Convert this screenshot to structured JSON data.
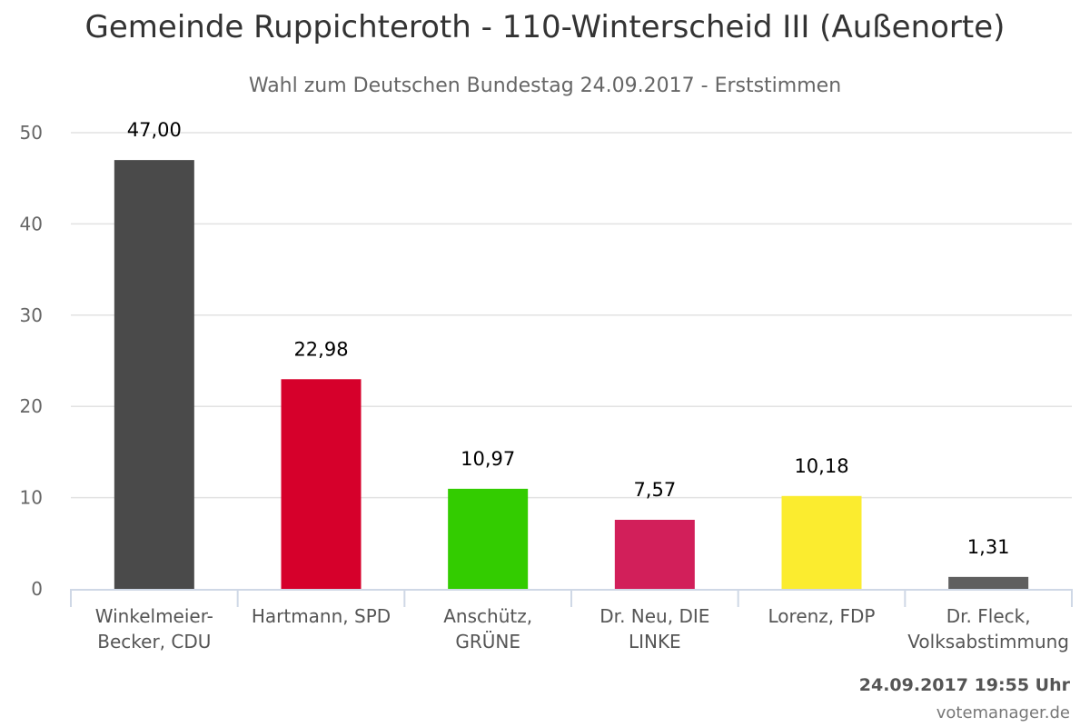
{
  "chart_data": {
    "type": "bar",
    "title": "Gemeinde Ruppichteroth - 110-Winterscheid III (Außenorte)",
    "subtitle": "Wahl zum Deutschen Bundestag 24.09.2017 - Erststimmen",
    "categories": [
      [
        "Winkelmeier-",
        "Becker, CDU"
      ],
      [
        "Hartmann, SPD"
      ],
      [
        "Anschütz,",
        "GRÜNE"
      ],
      [
        "Dr. Neu, DIE",
        "LINKE"
      ],
      [
        "Lorenz, FDP"
      ],
      [
        "Dr. Fleck,",
        "Volksabstimmung"
      ]
    ],
    "values": [
      47.0,
      22.98,
      10.97,
      7.57,
      10.18,
      1.31
    ],
    "data_labels": [
      "47,00",
      "22,98",
      "10,97",
      "7,57",
      "10,18",
      "1,31"
    ],
    "colors": [
      "#4a4a4a",
      "#d6002b",
      "#33cc00",
      "#d21f5a",
      "#fbec2f",
      "#5f5f5f"
    ],
    "ylim": [
      0,
      50
    ],
    "yticks": [
      0,
      10,
      20,
      30,
      40,
      50
    ],
    "xlabel": "",
    "ylabel": "",
    "grid": true,
    "legend": "none"
  },
  "footer": {
    "timestamp": "24.09.2017 19:55 Uhr",
    "credit": "votemanager.de"
  }
}
